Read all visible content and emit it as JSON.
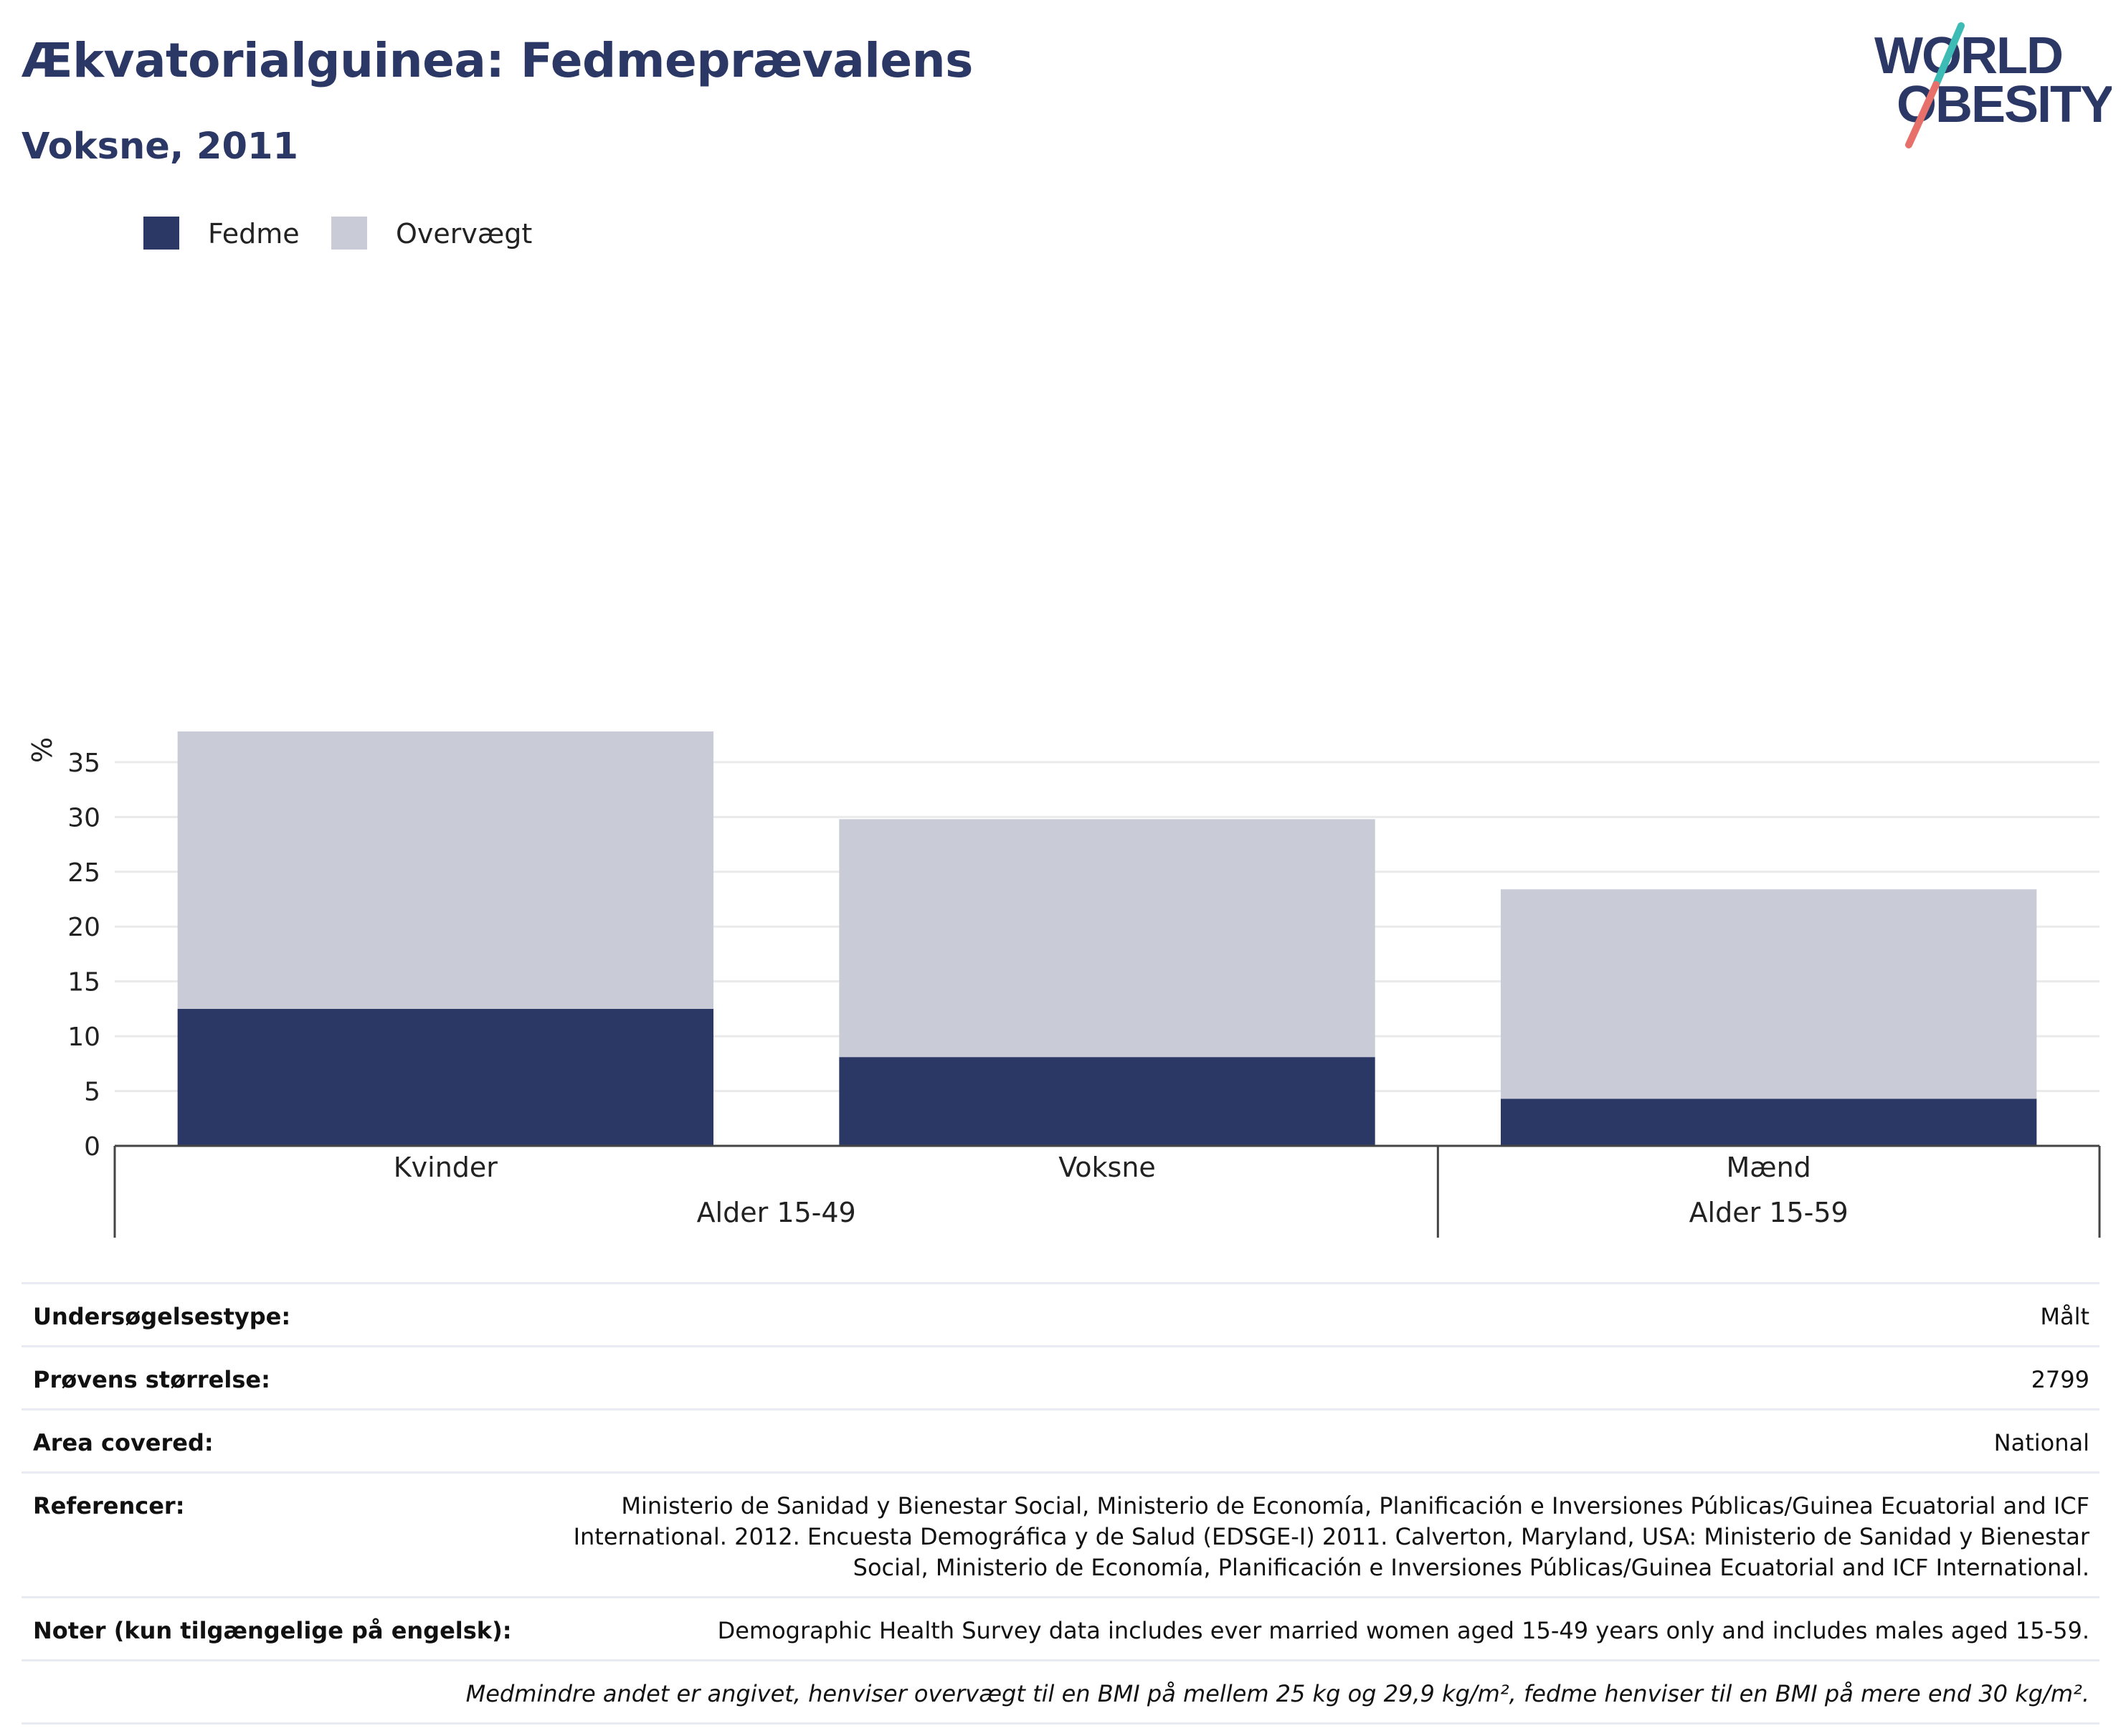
{
  "title": "Ækvatorialguinea: Fedmeprævalens",
  "subtitle": "Voksne, 2011",
  "logo": {
    "line1": "WORLD",
    "line2": "OBESITY"
  },
  "colors": {
    "obesity": "#2b3866",
    "overweight": "#c9cbd7",
    "title": "#2b3866",
    "logo_teal": "#3dbcb6",
    "logo_coral": "#e8706a"
  },
  "legend": [
    {
      "label": "Fedme",
      "color": "#2b3866"
    },
    {
      "label": "Overvægt",
      "color": "#c9cbd7"
    }
  ],
  "chart_data": {
    "type": "bar",
    "stacked": true,
    "ylabel": "%",
    "xlabel": "",
    "ylim": [
      0,
      38
    ],
    "yticks": [
      0,
      5,
      10,
      15,
      20,
      25,
      30,
      35
    ],
    "grid": true,
    "legend_position": "top-left",
    "categories": [
      "Kvinder",
      "Voksne",
      "Mænd"
    ],
    "groups": [
      {
        "label": "Alder 15-49",
        "categories": [
          "Kvinder",
          "Voksne"
        ]
      },
      {
        "label": "Alder 15-59",
        "categories": [
          "Mænd"
        ]
      }
    ],
    "series": [
      {
        "name": "Fedme",
        "values": [
          12.5,
          8.1,
          4.3
        ]
      },
      {
        "name": "Overvægt",
        "values": [
          25.3,
          21.7,
          19.1
        ]
      }
    ]
  },
  "info": [
    {
      "label": "Undersøgelsestype:",
      "value": "Målt"
    },
    {
      "label": "Prøvens størrelse:",
      "value": "2799"
    },
    {
      "label": "Area covered:",
      "value": "National"
    },
    {
      "label": "Referencer:",
      "value": "Ministerio de Sanidad y Bienestar Social, Ministerio de Economía, Planificación e Inversiones Públicas/Guinea Ecuatorial and ICF International. 2012. Encuesta Demográfica y de Salud (EDSGE-I) 2011. Calverton, Maryland, USA: Ministerio de Sanidad y Bienestar Social, Ministerio de Economía, Planificación e Inversiones Públicas/Guinea Ecuatorial and ICF International."
    },
    {
      "label": "Noter (kun tilgængelige på engelsk):",
      "value": "Demographic Health Survey data includes ever married women aged 15-49 years only and includes males aged 15-59."
    }
  ],
  "footnote": "Medmindre andet er angivet, henviser overvægt til en BMI på mellem 25 kg og 29,9 kg/m², fedme henviser til en BMI på mere end 30 kg/m²."
}
